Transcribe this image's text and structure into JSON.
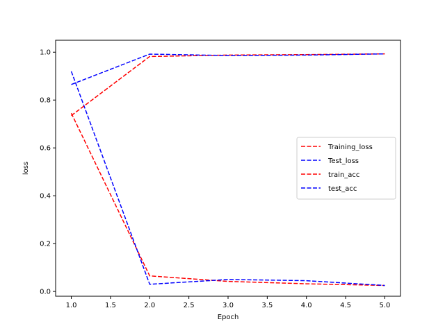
{
  "chart_data": {
    "type": "line",
    "xlabel": "Epoch",
    "ylabel": "loss",
    "xlim": [
      0.8,
      5.2
    ],
    "ylim": [
      -0.02,
      1.05
    ],
    "xticks": [
      1.0,
      1.5,
      2.0,
      2.5,
      3.0,
      3.5,
      4.0,
      4.5,
      5.0
    ],
    "xtick_labels": [
      "1.0",
      "1.5",
      "2.0",
      "2.5",
      "3.0",
      "3.5",
      "4.0",
      "4.5",
      "5.0"
    ],
    "yticks": [
      0.0,
      0.2,
      0.4,
      0.6,
      0.8,
      1.0
    ],
    "ytick_labels": [
      "0.0",
      "0.2",
      "0.4",
      "0.6",
      "0.8",
      "1.0"
    ],
    "grid": false,
    "legend_position": "center-right",
    "x": [
      1,
      2,
      3,
      4,
      5
    ],
    "series": [
      {
        "name": "Training_loss",
        "color": "#ff0000",
        "style": "dashed",
        "values": [
          0.745,
          0.065,
          0.042,
          0.032,
          0.025
        ]
      },
      {
        "name": "Test_loss",
        "color": "#0000ff",
        "style": "dashed",
        "values": [
          0.92,
          0.03,
          0.05,
          0.045,
          0.025
        ]
      },
      {
        "name": "train_acc",
        "color": "#ff0000",
        "style": "dashed",
        "values": [
          0.735,
          0.982,
          0.988,
          0.99,
          0.993
        ]
      },
      {
        "name": "test_acc",
        "color": "#0000ff",
        "style": "dashed",
        "values": [
          0.865,
          0.992,
          0.986,
          0.988,
          0.993
        ]
      }
    ]
  }
}
